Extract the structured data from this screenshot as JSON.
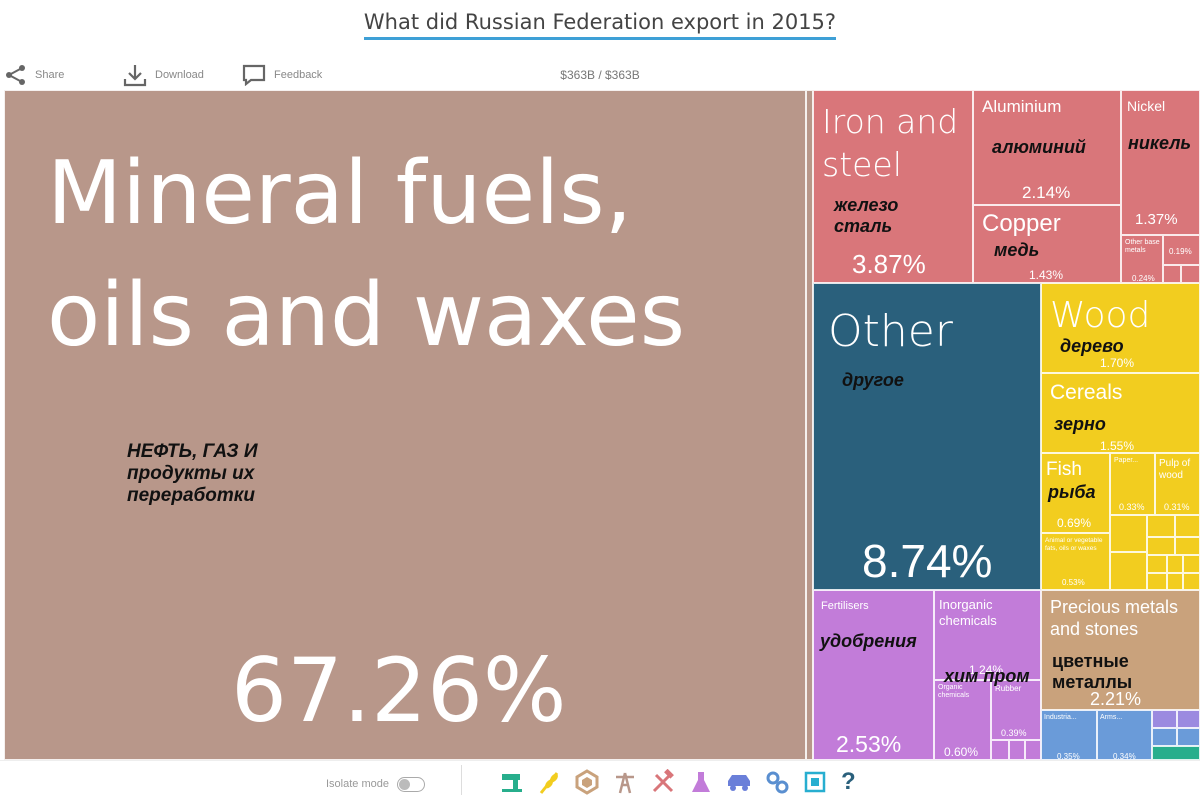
{
  "title": "What did Russian Federation export in 2015?",
  "toolbar": {
    "share_label": "Share",
    "download_label": "Download",
    "feedback_label": "Feedback",
    "total": "$363B / $363B"
  },
  "treemap": {
    "mineral": {
      "label": "Mineral fuels, oils and waxes",
      "pct": "67.26%",
      "annotation": "НЕФТЬ, ГАЗ И продукты их переработки",
      "color": "#b8978a"
    },
    "iron": {
      "label": "Iron and steel",
      "pct": "3.87%",
      "annotation": "железо сталь",
      "color": "#d9767a"
    },
    "aluminium": {
      "label": "Aluminium",
      "pct": "2.14%",
      "annotation": "алюминий",
      "color": "#d9767a"
    },
    "nickel": {
      "label": "Nickel",
      "pct": "1.37%",
      "annotation": "никель",
      "color": "#d9767a"
    },
    "copper": {
      "label": "Copper",
      "pct": "1.43%",
      "annotation": "медь",
      "color": "#d9767a"
    },
    "other_base": {
      "label": "Other base metals",
      "pct": "0.24%",
      "color": "#d9767a"
    },
    "small_metal": {
      "pct": "0.19%",
      "color": "#d9767a"
    },
    "other": {
      "label": "Other",
      "pct": "8.74%",
      "annotation": "другое",
      "color": "#2a607c"
    },
    "wood": {
      "label": "Wood",
      "pct": "1.70%",
      "annotation": "дерево",
      "color": "#f2cd1f"
    },
    "cereals": {
      "label": "Cereals",
      "pct": "1.55%",
      "annotation": "зерно",
      "color": "#f2cd1f"
    },
    "fish": {
      "label": "Fish",
      "pct": "0.69%",
      "annotation": "рыба",
      "color": "#f2cd1f"
    },
    "paper": {
      "label": "Paper...",
      "pct": "0.33%",
      "color": "#f2cd1f"
    },
    "pulp": {
      "label": "Pulp of wood",
      "pct": "0.31%",
      "color": "#f2cd1f"
    },
    "animal_fats": {
      "label": "Animal or vegetable fats, oils or waxes",
      "pct": "0.53%",
      "color": "#f2cd1f"
    },
    "fertilisers": {
      "label": "Fertilisers",
      "pct": "2.53%",
      "annotation": "удобрения",
      "color": "#c27cd9"
    },
    "inorganic": {
      "label": "Inorganic chemicals",
      "pct": "1.24%",
      "annotation": "хим пром",
      "color": "#c27cd9"
    },
    "organic": {
      "label": "Organic chemicals",
      "pct": "0.60%",
      "color": "#c27cd9"
    },
    "rubber": {
      "label": "Rubber",
      "pct": "0.39%",
      "color": "#c27cd9"
    },
    "precious": {
      "label": "Precious metals and stones",
      "pct": "2.21%",
      "annotation": "цветные металлы",
      "color": "#c9a27c"
    },
    "industrial": {
      "label": "Industria...",
      "pct": "0.35%",
      "color": "#6a9bd9"
    },
    "arms": {
      "label": "Arms...",
      "pct": "0.34%",
      "color": "#6a9bd9"
    },
    "colors": {
      "white": "#ffffff",
      "teal": "#27ae8c",
      "blue_light": "#6a9bd9",
      "purple_light": "#9b8ae0",
      "accent": "#3ea0d6"
    }
  },
  "bottom": {
    "isolate_label": "Isolate mode",
    "categories": [
      "textiles-icon",
      "vegetable-products-icon",
      "stone-glass-icon",
      "minerals-icon",
      "metals-icon",
      "chemicals-icon",
      "transportation-icon",
      "machines-icon",
      "electronics-icon",
      "help-icon"
    ],
    "help_glyph": "?"
  }
}
